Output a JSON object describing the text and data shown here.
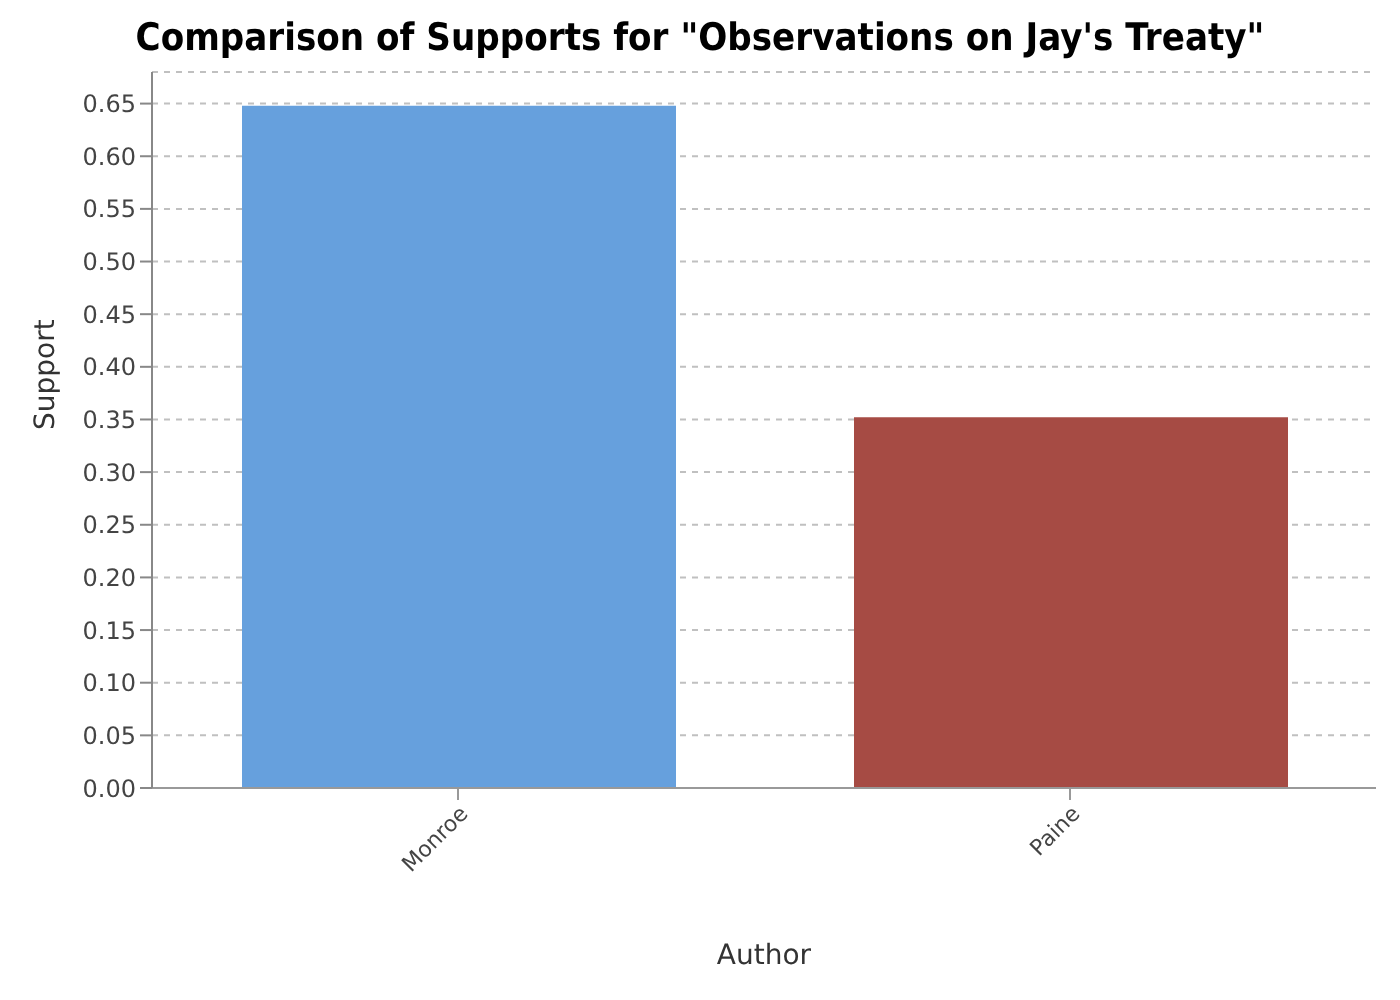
{
  "chart_data": {
    "type": "bar",
    "title": "Comparison of Supports for \"Observations on Jay's Treaty\"",
    "xlabel": "Author",
    "ylabel": "Support",
    "categories": [
      "Monroe",
      "Paine"
    ],
    "values": [
      0.648,
      0.352
    ],
    "colors": [
      "#66a0dd",
      "#a64b44"
    ],
    "ylim": [
      0,
      0.68
    ],
    "yticks": [
      {
        "value": 0,
        "label": "0.00"
      },
      0.05,
      {
        "value": 0.1,
        "label": "0.10"
      },
      0.15,
      {
        "value": 0.2,
        "label": "0.20"
      },
      0.25,
      {
        "value": 0.3,
        "label": "0.30"
      },
      0.35,
      {
        "value": 0.4,
        "label": "0.40"
      },
      0.45,
      {
        "value": 0.5,
        "label": "0.50"
      },
      0.55,
      {
        "value": 0.6,
        "label": "0.60"
      },
      0.65
    ],
    "grid": "y",
    "legend": false
  }
}
